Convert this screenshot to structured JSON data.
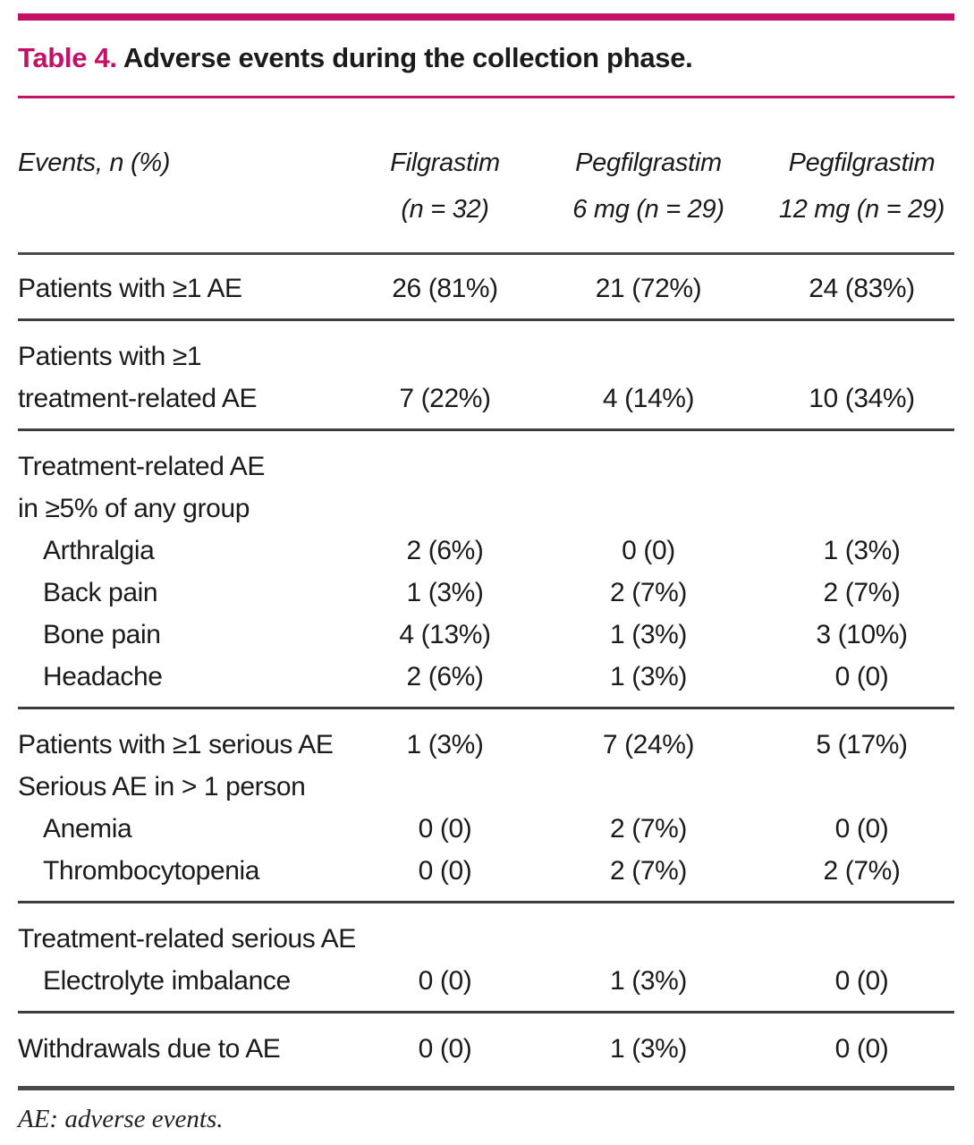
{
  "title": {
    "label": "Table 4.",
    "text": "Adverse events during the collection phase."
  },
  "table": {
    "corner_header": "Events, n (%)",
    "columns": [
      {
        "lines": [
          "Filgrastim",
          "(n = 32)"
        ]
      },
      {
        "lines": [
          "Pegfilgrastim",
          "6 mg (n = 29)"
        ]
      },
      {
        "lines": [
          "Pegfilgrastim",
          "12 mg (n = 29)"
        ]
      }
    ],
    "rows": [
      {
        "label_lines": [
          "Patients with ≥1 AE"
        ],
        "indent": false,
        "values": [
          "26 (81%)",
          "21 (72%)",
          "24 (83%)"
        ],
        "divider_after": true
      },
      {
        "label_lines": [
          "Patients with ≥1",
          "treatment-related AE"
        ],
        "indent": false,
        "values": [
          "7 (22%)",
          "4 (14%)",
          "10 (34%)"
        ],
        "divider_after": true
      },
      {
        "label_lines": [
          "Treatment-related AE",
          "in ≥5% of any group"
        ],
        "indent": false,
        "values": [
          "",
          "",
          ""
        ],
        "divider_after": false
      },
      {
        "label_lines": [
          "Arthralgia"
        ],
        "indent": true,
        "values": [
          "2 (6%)",
          "0 (0)",
          "1 (3%)"
        ],
        "divider_after": false
      },
      {
        "label_lines": [
          "Back pain"
        ],
        "indent": true,
        "values": [
          "1 (3%)",
          "2 (7%)",
          "2 (7%)"
        ],
        "divider_after": false
      },
      {
        "label_lines": [
          "Bone pain"
        ],
        "indent": true,
        "values": [
          "4 (13%)",
          "1 (3%)",
          "3 (10%)"
        ],
        "divider_after": false
      },
      {
        "label_lines": [
          "Headache"
        ],
        "indent": true,
        "values": [
          "2 (6%)",
          "1 (3%)",
          "0 (0)"
        ],
        "divider_after": true
      },
      {
        "label_lines": [
          "Patients with ≥1 serious AE"
        ],
        "indent": false,
        "values": [
          "1 (3%)",
          "7 (24%)",
          "5 (17%)"
        ],
        "divider_after": false
      },
      {
        "label_lines": [
          "Serious AE in > 1 person"
        ],
        "indent": false,
        "values": [
          "",
          "",
          ""
        ],
        "divider_after": false
      },
      {
        "label_lines": [
          "Anemia"
        ],
        "indent": true,
        "values": [
          "0 (0)",
          "2 (7%)",
          "0 (0)"
        ],
        "divider_after": false
      },
      {
        "label_lines": [
          "Thrombocytopenia"
        ],
        "indent": true,
        "values": [
          "0 (0)",
          "2 (7%)",
          "2 (7%)"
        ],
        "divider_after": true
      },
      {
        "label_lines": [
          "Treatment-related serious AE"
        ],
        "indent": false,
        "values": [
          "",
          "",
          ""
        ],
        "divider_after": false
      },
      {
        "label_lines": [
          "Electrolyte imbalance"
        ],
        "indent": true,
        "values": [
          "0 (0)",
          "1 (3%)",
          "0 (0)"
        ],
        "divider_after": true
      },
      {
        "label_lines": [
          "Withdrawals due to AE"
        ],
        "indent": false,
        "values": [
          "0 (0)",
          "1 (3%)",
          "0 (0)"
        ],
        "divider_after": false
      }
    ]
  },
  "footnote": "AE: adverse events.",
  "colors": {
    "accent": "#C51067",
    "text": "#1b1b1b",
    "rule": "#3d3d3d"
  }
}
